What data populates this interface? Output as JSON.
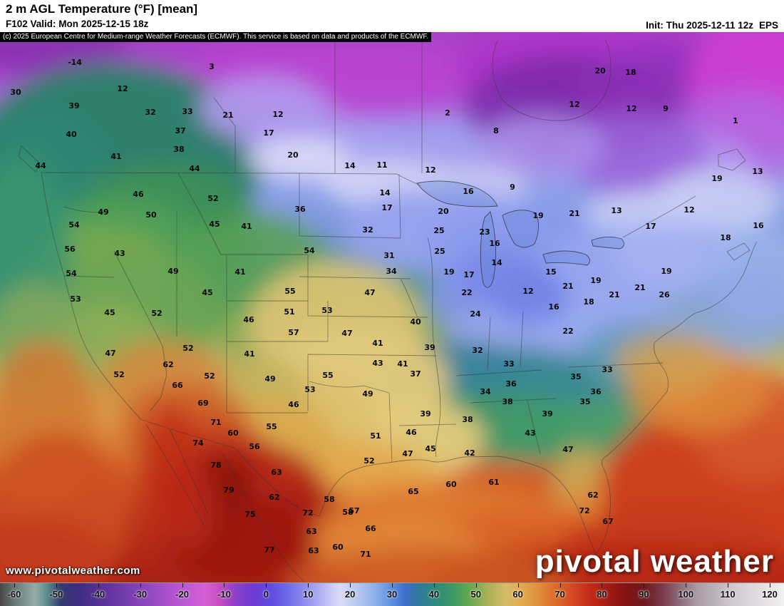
{
  "header": {
    "title": "2 m AGL Temperature (°F) [mean]",
    "valid": "F102 Valid: Mon 2025-12-15 18z",
    "init": "Init: Thu 2025-12-11 12z",
    "model": "EPS"
  },
  "attribution": "(c) 2025 European Centre for Medium-range Weather Forecasts (ECMWF). This service is based on data and products of the ECMWF.",
  "branding": {
    "watermark": "www.pivotalweather.com",
    "logo": "pivotal weather"
  },
  "colorbar": {
    "unit": "°F",
    "min": -60,
    "max": 120,
    "ticks": [
      -60,
      -50,
      -40,
      -30,
      -20,
      -10,
      0,
      10,
      20,
      30,
      40,
      50,
      60,
      70,
      80,
      90,
      100,
      110,
      120
    ],
    "stops_format": "[tempF, hexColor]",
    "stops": [
      [
        -60,
        "#474747"
      ],
      [
        -56,
        "#6f7f7f"
      ],
      [
        -52,
        "#94aba7"
      ],
      [
        -50,
        "#6b9a94"
      ],
      [
        -48,
        "#497080"
      ],
      [
        -46,
        "#343a72"
      ],
      [
        -42,
        "#3d2d7e"
      ],
      [
        -36,
        "#5c3399"
      ],
      [
        -30,
        "#7a3fb0"
      ],
      [
        -24,
        "#9b4cc4"
      ],
      [
        -18,
        "#bc58d4"
      ],
      [
        -13,
        "#d65fd6"
      ],
      [
        -10,
        "#c94fc0"
      ],
      [
        -6,
        "#8e3fc9"
      ],
      [
        -2,
        "#6f3bd4"
      ],
      [
        2,
        "#5f4ae0"
      ],
      [
        6,
        "#6f6ae8"
      ],
      [
        10,
        "#8f8cee"
      ],
      [
        14,
        "#b5b5f4"
      ],
      [
        18,
        "#dadcf8"
      ],
      [
        22,
        "#b8c8f0"
      ],
      [
        26,
        "#8fb0ea"
      ],
      [
        30,
        "#5d8fe0"
      ],
      [
        33,
        "#3e6fc8"
      ],
      [
        36,
        "#2f7a9e"
      ],
      [
        40,
        "#2e8a7a"
      ],
      [
        44,
        "#3d9a62"
      ],
      [
        48,
        "#6aa84f"
      ],
      [
        52,
        "#a8b058"
      ],
      [
        56,
        "#d4bc6a"
      ],
      [
        60,
        "#e0a94e"
      ],
      [
        64,
        "#e08a38"
      ],
      [
        68,
        "#dd6628"
      ],
      [
        72,
        "#d44422"
      ],
      [
        76,
        "#c02818"
      ],
      [
        80,
        "#9e1a12"
      ],
      [
        84,
        "#801313"
      ],
      [
        88,
        "#6d1a20"
      ],
      [
        92,
        "#7a3a4a"
      ],
      [
        96,
        "#8d6b7a"
      ],
      [
        100,
        "#a89aa5"
      ],
      [
        108,
        "#cfc8ce"
      ],
      [
        120,
        "#f2f0f2"
      ]
    ]
  },
  "map": {
    "stations_format": "[tempF, x, y] in page pixels",
    "stations": [
      [
        -14,
        105,
        87
      ],
      [
        3,
        297,
        93
      ],
      [
        20,
        842,
        99
      ],
      [
        18,
        885,
        101
      ],
      [
        30,
        22,
        129
      ],
      [
        12,
        172,
        124
      ],
      [
        39,
        104,
        148
      ],
      [
        32,
        211,
        157
      ],
      [
        33,
        263,
        156
      ],
      [
        21,
        320,
        161
      ],
      [
        12,
        390,
        160
      ],
      [
        2,
        628,
        158
      ],
      [
        12,
        806,
        146
      ],
      [
        12,
        886,
        152
      ],
      [
        9,
        934,
        152
      ],
      [
        1,
        1032,
        169
      ],
      [
        8,
        696,
        183
      ],
      [
        37,
        253,
        183
      ],
      [
        17,
        377,
        186
      ],
      [
        40,
        100,
        188
      ],
      [
        38,
        251,
        209
      ],
      [
        41,
        163,
        219
      ],
      [
        20,
        411,
        217
      ],
      [
        44,
        57,
        232
      ],
      [
        44,
        273,
        236
      ],
      [
        14,
        491,
        232
      ],
      [
        11,
        536,
        231
      ],
      [
        12,
        604,
        238
      ],
      [
        13,
        1063,
        240
      ],
      [
        19,
        1006,
        250
      ],
      [
        46,
        194,
        272
      ],
      [
        52,
        299,
        278
      ],
      [
        14,
        540,
        270
      ],
      [
        16,
        657,
        268
      ],
      [
        9,
        719,
        262
      ],
      [
        49,
        145,
        297
      ],
      [
        50,
        212,
        301
      ],
      [
        36,
        421,
        293
      ],
      [
        17,
        543,
        291
      ],
      [
        20,
        622,
        296
      ],
      [
        19,
        755,
        302
      ],
      [
        21,
        806,
        299
      ],
      [
        13,
        865,
        295
      ],
      [
        12,
        967,
        294
      ],
      [
        54,
        104,
        315
      ],
      [
        45,
        301,
        314
      ],
      [
        41,
        346,
        317
      ],
      [
        32,
        516,
        322
      ],
      [
        25,
        616,
        323
      ],
      [
        23,
        680,
        325
      ],
      [
        17,
        913,
        317
      ],
      [
        16,
        1064,
        316
      ],
      [
        18,
        1018,
        333
      ],
      [
        56,
        98,
        349
      ],
      [
        43,
        168,
        355
      ],
      [
        54,
        434,
        351
      ],
      [
        31,
        546,
        358
      ],
      [
        25,
        617,
        352
      ],
      [
        16,
        694,
        341
      ],
      [
        15,
        773,
        381
      ],
      [
        54,
        100,
        383
      ],
      [
        49,
        243,
        380
      ],
      [
        41,
        337,
        381
      ],
      [
        34,
        549,
        380
      ],
      [
        19,
        630,
        381
      ],
      [
        17,
        658,
        385
      ],
      [
        14,
        697,
        368
      ],
      [
        21,
        797,
        401
      ],
      [
        19,
        836,
        393
      ],
      [
        21,
        862,
        413
      ],
      [
        21,
        898,
        403
      ],
      [
        26,
        932,
        413
      ],
      [
        19,
        935,
        380
      ],
      [
        53,
        106,
        419
      ],
      [
        45,
        291,
        410
      ],
      [
        55,
        407,
        408
      ],
      [
        47,
        519,
        410
      ],
      [
        22,
        655,
        410
      ],
      [
        12,
        741,
        408
      ],
      [
        16,
        777,
        430
      ],
      [
        18,
        826,
        423
      ],
      [
        45,
        154,
        438
      ],
      [
        52,
        220,
        439
      ],
      [
        51,
        406,
        437
      ],
      [
        53,
        459,
        435
      ],
      [
        46,
        349,
        448
      ],
      [
        57,
        412,
        466
      ],
      [
        40,
        583,
        451
      ],
      [
        24,
        667,
        440
      ],
      [
        22,
        797,
        464
      ],
      [
        47,
        487,
        467
      ],
      [
        41,
        530,
        481
      ],
      [
        39,
        603,
        487
      ],
      [
        32,
        670,
        491
      ],
      [
        47,
        155,
        495
      ],
      [
        52,
        264,
        488
      ],
      [
        41,
        350,
        496
      ],
      [
        43,
        530,
        509
      ],
      [
        41,
        565,
        510
      ],
      [
        37,
        583,
        524
      ],
      [
        33,
        714,
        510
      ],
      [
        33,
        852,
        518
      ],
      [
        35,
        808,
        528
      ],
      [
        52,
        167,
        525
      ],
      [
        62,
        236,
        511
      ],
      [
        66,
        249,
        540
      ],
      [
        52,
        294,
        527
      ],
      [
        49,
        379,
        531
      ],
      [
        55,
        460,
        526
      ],
      [
        53,
        435,
        546
      ],
      [
        49,
        516,
        552
      ],
      [
        34,
        681,
        549
      ],
      [
        36,
        717,
        538
      ],
      [
        38,
        712,
        563
      ],
      [
        36,
        836,
        549
      ],
      [
        35,
        821,
        563
      ],
      [
        69,
        285,
        565
      ],
      [
        46,
        412,
        567
      ],
      [
        38,
        656,
        588
      ],
      [
        39,
        768,
        580
      ],
      [
        71,
        303,
        592
      ],
      [
        60,
        327,
        607
      ],
      [
        55,
        381,
        598
      ],
      [
        39,
        597,
        580
      ],
      [
        43,
        744,
        607
      ],
      [
        42,
        659,
        635
      ],
      [
        74,
        278,
        621
      ],
      [
        56,
        357,
        626
      ],
      [
        51,
        527,
        611
      ],
      [
        46,
        577,
        606
      ],
      [
        45,
        604,
        629
      ],
      [
        47,
        797,
        630
      ],
      [
        78,
        303,
        652
      ],
      [
        63,
        388,
        662
      ],
      [
        47,
        572,
        636
      ],
      [
        52,
        518,
        646
      ],
      [
        65,
        580,
        689
      ],
      [
        60,
        633,
        679
      ],
      [
        61,
        693,
        676
      ],
      [
        79,
        321,
        687
      ],
      [
        62,
        385,
        697
      ],
      [
        58,
        462,
        700
      ],
      [
        57,
        497,
        716
      ],
      [
        66,
        520,
        741
      ],
      [
        62,
        832,
        694
      ],
      [
        72,
        820,
        716
      ],
      [
        67,
        853,
        731
      ],
      [
        75,
        351,
        721
      ],
      [
        72,
        432,
        719
      ],
      [
        58,
        488,
        718
      ],
      [
        77,
        378,
        771
      ],
      [
        63,
        437,
        745
      ],
      [
        63,
        440,
        772
      ],
      [
        60,
        474,
        767
      ],
      [
        71,
        513,
        777
      ]
    ]
  }
}
